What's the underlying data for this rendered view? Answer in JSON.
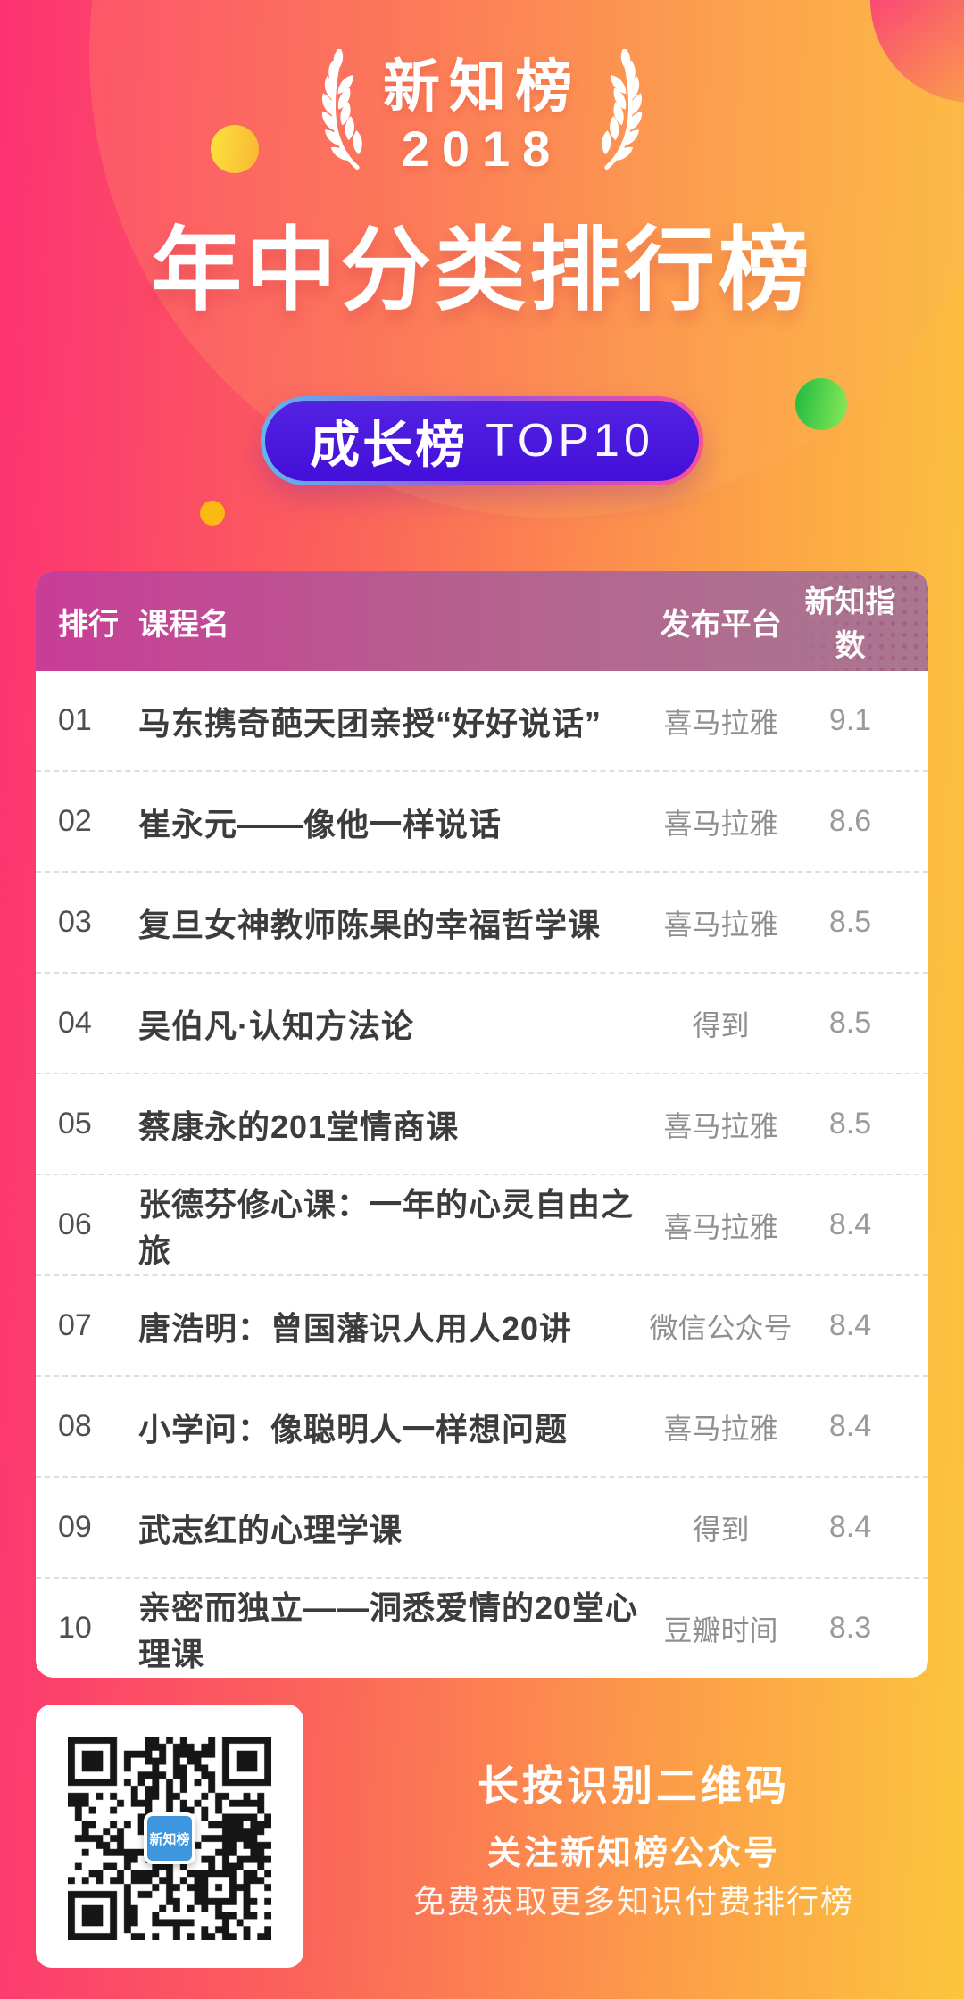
{
  "header": {
    "logo_title": "新知榜",
    "logo_year": "2018",
    "main_title": "年中分类排行榜",
    "badge_category": "成长榜",
    "badge_suffix": "TOP10"
  },
  "table": {
    "columns": {
      "rank": "排行",
      "course": "课程名",
      "platform": "发布平台",
      "index": "新知指数"
    },
    "rows": [
      {
        "rank": "01",
        "course": "马东携奇葩天团亲授“好好说话”",
        "platform": "喜马拉雅",
        "index": "9.1"
      },
      {
        "rank": "02",
        "course": "崔永元——像他一样说话",
        "platform": "喜马拉雅",
        "index": "8.6"
      },
      {
        "rank": "03",
        "course": "复旦女神教师陈果的幸福哲学课",
        "platform": "喜马拉雅",
        "index": "8.5"
      },
      {
        "rank": "04",
        "course": "吴伯凡·认知方法论",
        "platform": "得到",
        "index": "8.5"
      },
      {
        "rank": "05",
        "course": "蔡康永的201堂情商课",
        "platform": "喜马拉雅",
        "index": "8.5"
      },
      {
        "rank": "06",
        "course": "张德芬修心课：一年的心灵自由之旅",
        "platform": "喜马拉雅",
        "index": "8.4"
      },
      {
        "rank": "07",
        "course": "唐浩明：曾国藩识人用人20讲",
        "platform": "微信公众号",
        "index": "8.4"
      },
      {
        "rank": "08",
        "course": "小学问：像聪明人一样想问题",
        "platform": "喜马拉雅",
        "index": "8.4"
      },
      {
        "rank": "09",
        "course": "武志红的心理学课",
        "platform": "得到",
        "index": "8.4"
      },
      {
        "rank": "10",
        "course": "亲密而独立——洞悉爱情的20堂心理课",
        "platform": "豆瓣时间",
        "index": "8.3"
      }
    ]
  },
  "footer": {
    "qr_logo": "新知榜",
    "line1": "长按识别二维码",
    "line2": "关注新知榜公众号",
    "line3": "免费获取更多知识付费排行榜"
  },
  "colors": {
    "bg_gradient_left": "#fc3273",
    "bg_gradient_right": "#fcc53d",
    "badge_fill": "#4a18dc",
    "badge_border_left": "#5fb8ee",
    "badge_border_right": "#fa4f9b",
    "table_header_left": "#c83d96",
    "table_header_right": "#aa7790",
    "qr_logo_blue": "#3e96df",
    "green_circle": "#1eb940",
    "yellow_circle": "#fcb913"
  }
}
